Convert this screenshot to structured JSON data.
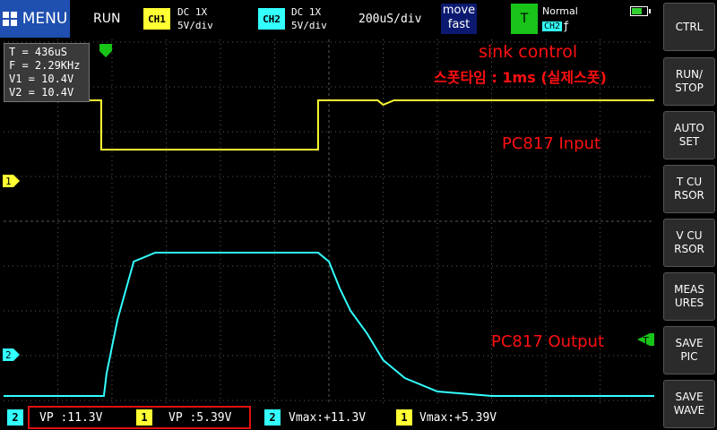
{
  "topbar": {
    "menu_label": "MENU",
    "run_status": "RUN",
    "ch1": {
      "badge": "CH1",
      "coupling": "DC  1X",
      "scale": "5V/div"
    },
    "ch2": {
      "badge": "CH2",
      "coupling": "DC  1X",
      "scale": "5V/div"
    },
    "timebase": "200uS/div",
    "move": {
      "line1": "move",
      "line2": "fast"
    },
    "trigger": {
      "badge": "T",
      "mode": "Normal",
      "source": "CH2",
      "edge": "ƒ"
    }
  },
  "info": {
    "t": "T = 436uS",
    "f": "F = 2.29KHz",
    "v1": "V1 = 10.4V",
    "v2": "V2 = 10.4V"
  },
  "annotations": {
    "title": "sink control",
    "subtitle": "스폿타임 : 1ms (실제스폿)",
    "input_label": "PC817 Input",
    "output_label": "PC817 Output"
  },
  "markers": {
    "ch1": "1",
    "ch2": "2",
    "trig": "T"
  },
  "sidebar": [
    {
      "label": "CTRL"
    },
    {
      "label": "RUN/\nSTOP"
    },
    {
      "label": "AUTO\nSET"
    },
    {
      "label": "T CU\nRSOR"
    },
    {
      "label": "V CU\nRSOR"
    },
    {
      "label": "MEAS\nURES"
    },
    {
      "label": "SAVE\nPIC"
    },
    {
      "label": "SAVE\nWAVE"
    }
  ],
  "measurements": [
    {
      "ch": "2",
      "text": "VP  :11.3V"
    },
    {
      "ch": "1",
      "text": "VP  :5.39V"
    },
    {
      "ch": "2",
      "text": "Vmax:+11.3V"
    },
    {
      "ch": "1",
      "text": "Vmax:+5.39V"
    }
  ],
  "colors": {
    "ch1": "#ffff33",
    "ch2": "#33ffff",
    "trigger": "#18c418",
    "grid": "#5a5a5a",
    "annotation": "#ff1010"
  },
  "chart_data": {
    "type": "line",
    "x_unit": "div (200uS/div)",
    "series": [
      {
        "name": "PC817 Input",
        "channel": "CH1",
        "x": [
          0,
          1.8,
          1.8,
          5.8,
          5.8,
          6.9,
          7.0,
          7.2,
          12.0
        ],
        "y": [
          2.7,
          2.7,
          1.6,
          1.6,
          2.7,
          2.7,
          2.6,
          2.7,
          2.7
        ]
      },
      {
        "name": "PC817 Output",
        "channel": "CH2",
        "x": [
          0,
          1.85,
          1.9,
          2.1,
          2.4,
          2.8,
          5.8,
          6.0,
          6.2,
          6.4,
          6.7,
          7.0,
          7.4,
          8.0,
          9.0,
          12.0
        ],
        "y": [
          -3.9,
          -3.9,
          -3.4,
          -2.2,
          -0.9,
          -0.7,
          -0.7,
          -0.9,
          -1.5,
          -2.0,
          -2.5,
          -3.1,
          -3.5,
          -3.8,
          -3.9,
          -3.9
        ]
      }
    ]
  }
}
